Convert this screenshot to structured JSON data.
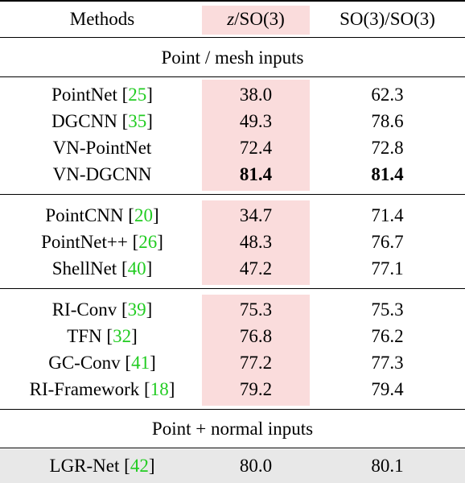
{
  "header": [
    "Methods",
    "z/SO(3)",
    "SO(3)/SO(3)"
  ],
  "sections": [
    {
      "title": "Point / mesh inputs",
      "groups": [
        [
          {
            "method": "PointNet",
            "cite": "[25]",
            "z": "38.0",
            "so3": "62.3"
          },
          {
            "method": "DGCNN",
            "cite": "[35]",
            "z": "49.3",
            "so3": "78.6"
          },
          {
            "method": "VN-PointNet",
            "z": "72.4",
            "so3": "72.8"
          },
          {
            "method": "VN-DGCNN",
            "z": "81.4",
            "so3": "81.4",
            "bold": true
          }
        ],
        [
          {
            "method": "PointCNN",
            "cite": "[20]",
            "z": "34.7",
            "so3": "71.4"
          },
          {
            "method": "PointNet++",
            "cite": "[26]",
            "z": "48.3",
            "so3": "76.7"
          },
          {
            "method": "ShellNet",
            "cite": "[40]",
            "z": "47.2",
            "so3": "77.1"
          }
        ],
        [
          {
            "method": "RI-Conv",
            "cite": "[39]",
            "z": "75.3",
            "so3": "75.3"
          },
          {
            "method": "TFN",
            "cite": "[32]",
            "z": "76.8",
            "so3": "76.2"
          },
          {
            "method": "GC-Conv",
            "cite": "[41]",
            "z": "77.2",
            "so3": "77.3"
          },
          {
            "method": "RI-Framework",
            "cite": "[18]",
            "z": "79.2",
            "so3": "79.4"
          }
        ]
      ]
    },
    {
      "title": "Point + normal inputs",
      "groups": [
        [
          {
            "method": "LGR-Net",
            "cite": "[42]",
            "z": "80.0",
            "so3": "80.1",
            "shaded": true
          }
        ]
      ]
    }
  ]
}
